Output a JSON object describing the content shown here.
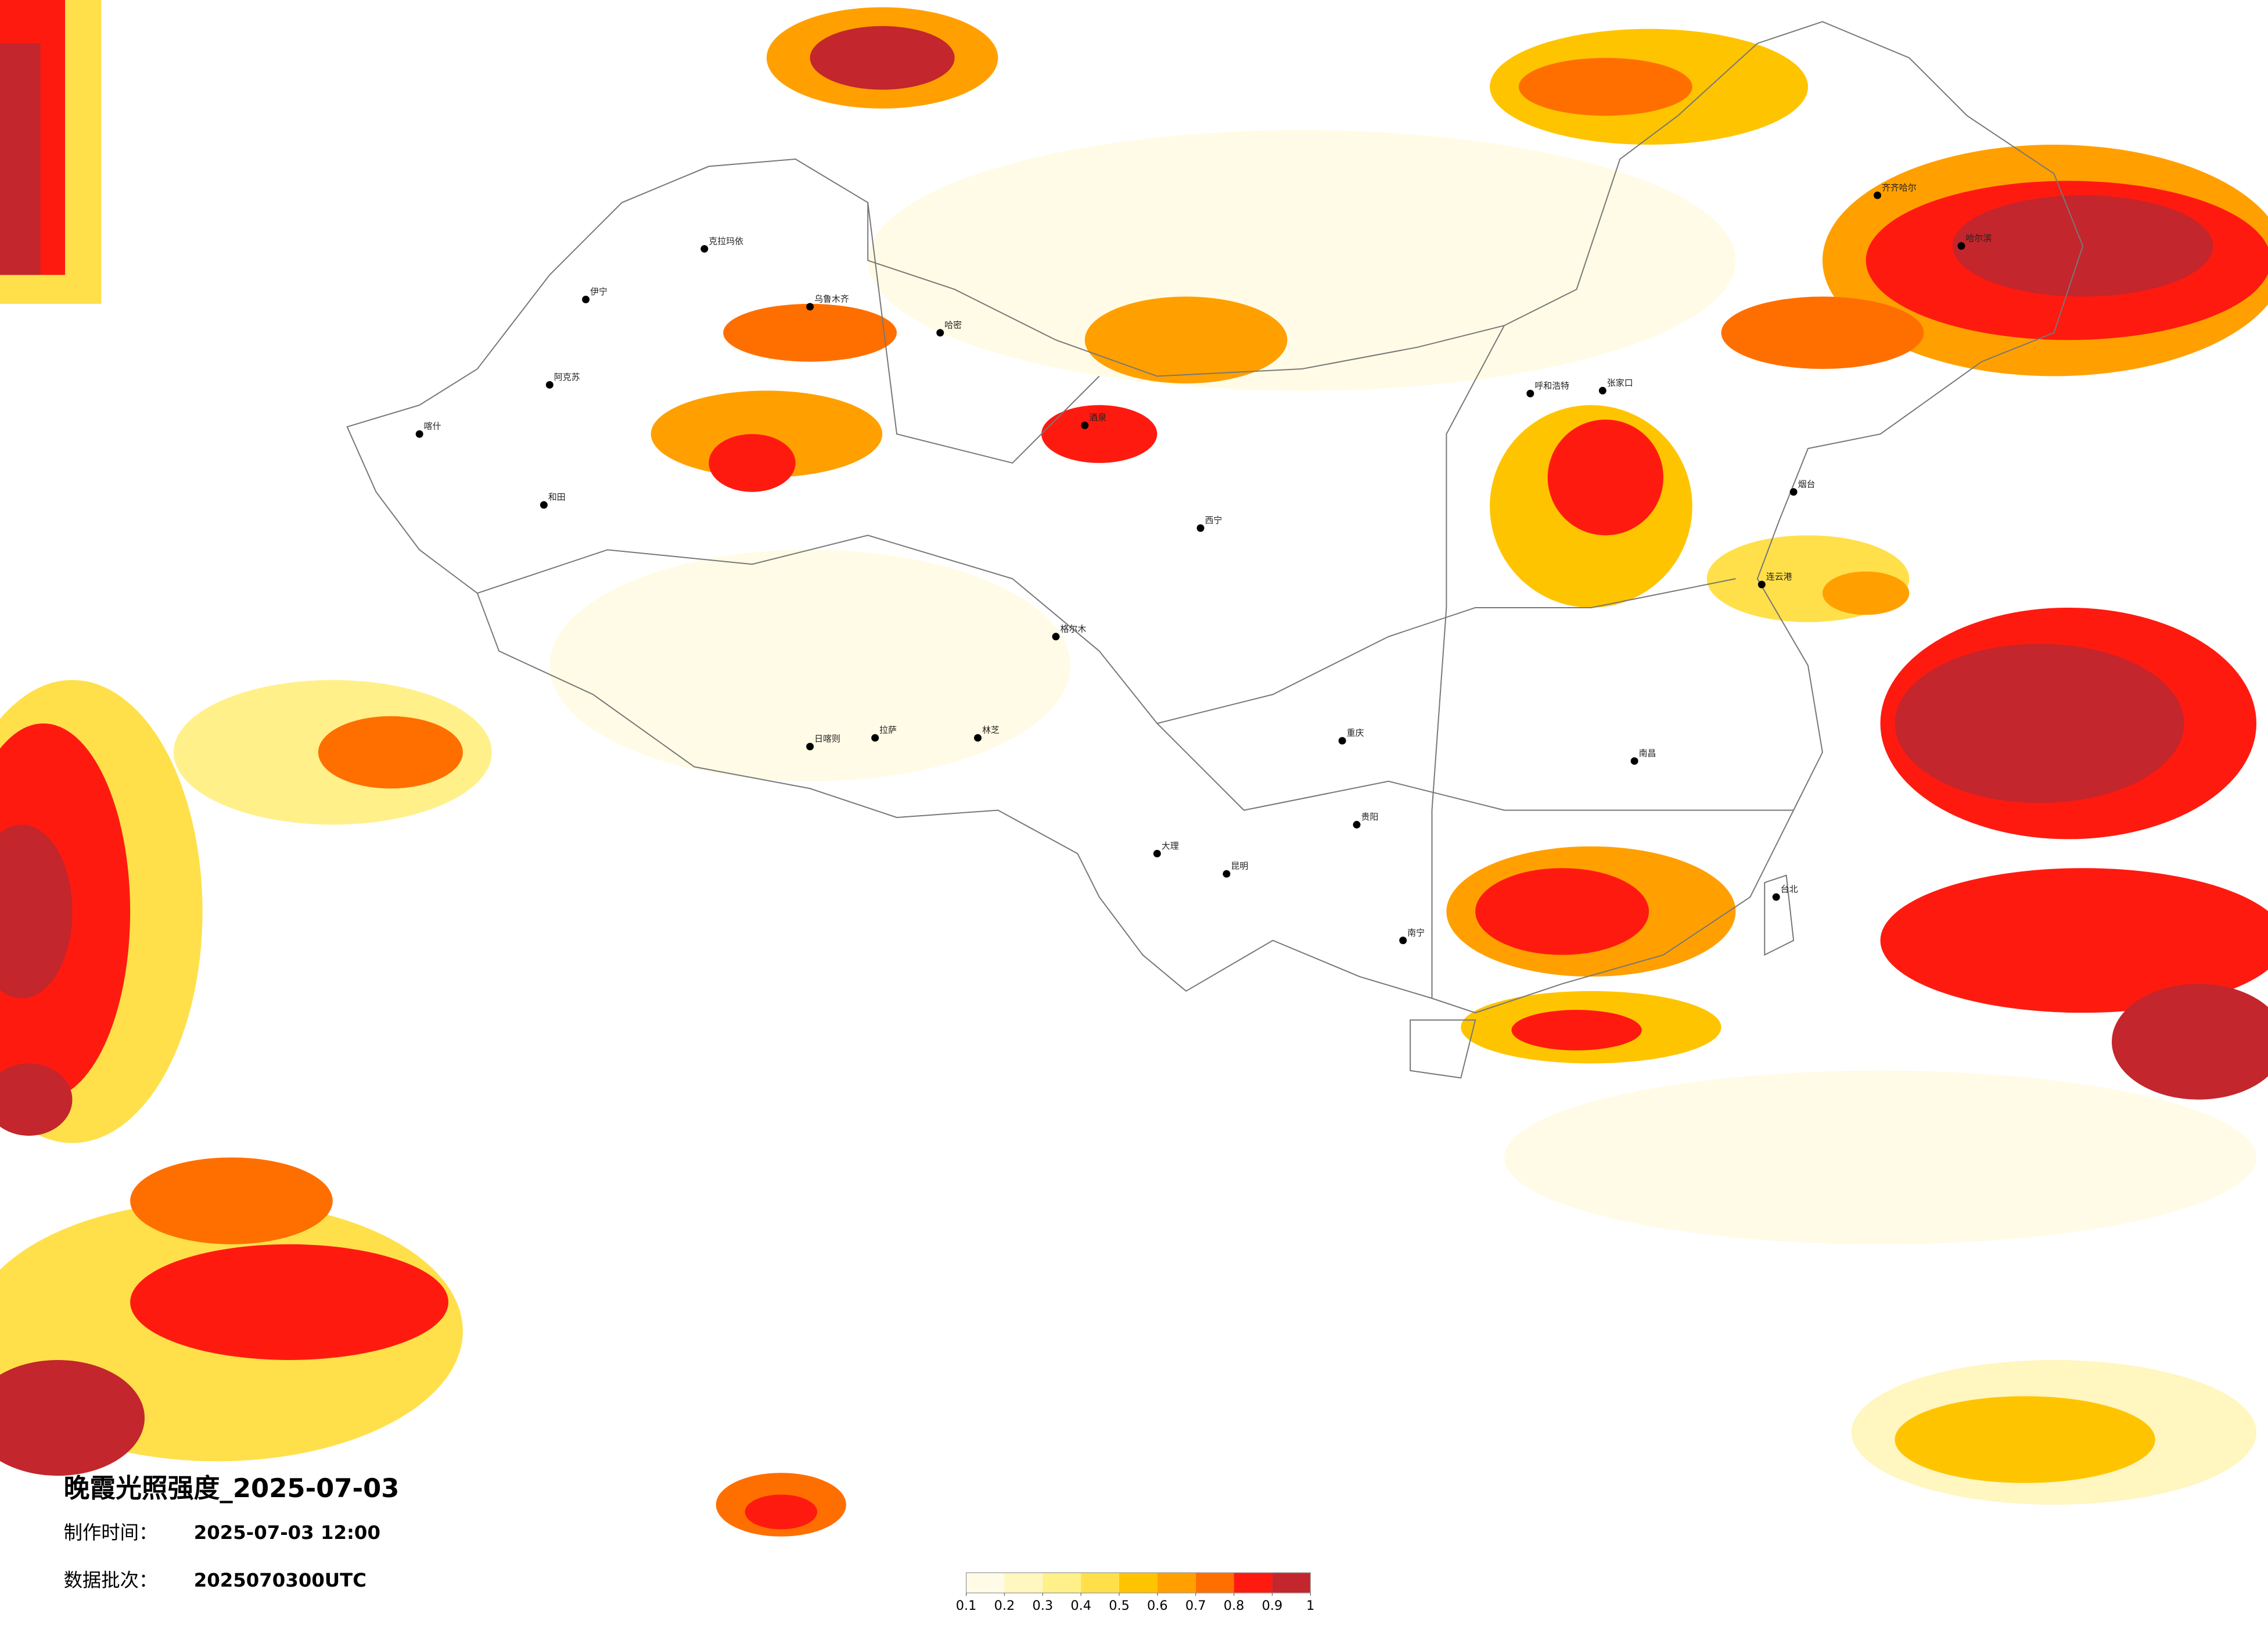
{
  "title": "晚霞光照强度_2025-07-03",
  "made_label": "制作时间：",
  "made_time": "2025-07-03 12:00",
  "batch_label": "数据批次：",
  "batch": "2025070300UTC",
  "colorbar": {
    "colors": [
      "#fffbe6",
      "#fff6c0",
      "#fff08a",
      "#ffe04a",
      "#ffc400",
      "#ffa000",
      "#ff6f00",
      "#ff1a10",
      "#c3262c"
    ],
    "clim": [
      0.1,
      1
    ],
    "ticks": [
      0.1,
      0.2,
      0.3,
      0.4,
      0.5,
      0.6,
      0.7,
      0.8,
      0.9,
      1
    ]
  },
  "cities": [
    "克拉玛依",
    "乌鲁木齐",
    "伊宁",
    "阿克苏",
    "喀什",
    "和田",
    "哈密",
    "拉萨",
    "日喀则",
    "林芝",
    "西宁",
    "张家口",
    "呼和浩特",
    "齐齐哈尔",
    "哈尔滨",
    "烟台",
    "连云港",
    "南昌",
    "台北",
    "南宁",
    "大理",
    "昆明",
    "重庆",
    "贵阳",
    "酒泉",
    "格尔木"
  ]
}
